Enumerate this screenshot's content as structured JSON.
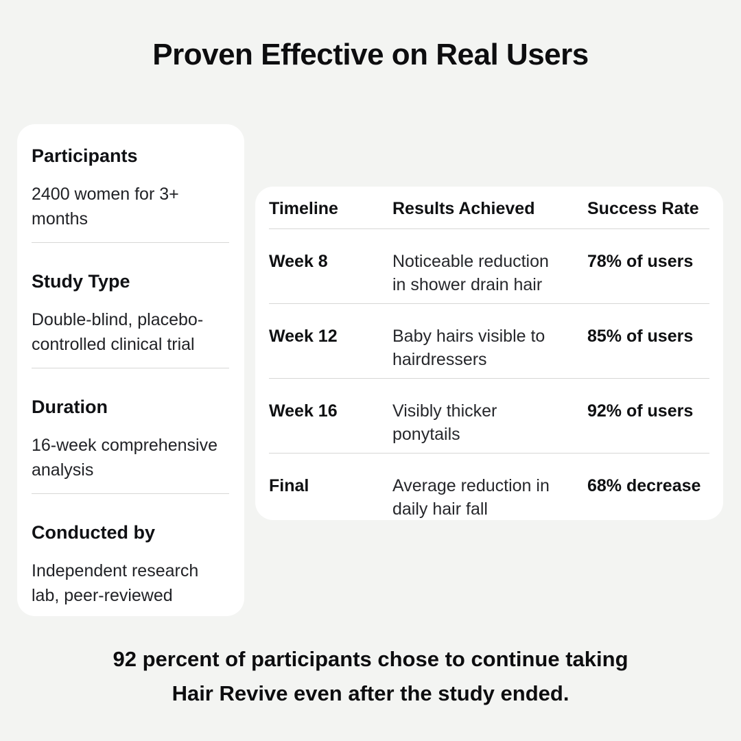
{
  "page": {
    "title": "Proven Effective on Real Users",
    "background_color": "#f3f4f2",
    "card_color": "#ffffff",
    "text_color": "#0d0d0f",
    "divider_color": "#d7d7d5"
  },
  "study_card": {
    "sections": [
      {
        "heading": "Participants",
        "body": "2400 women for 3+ months"
      },
      {
        "heading": "Study Type",
        "body": "Double-blind, placebo-controlled clinical trial"
      },
      {
        "heading": "Duration",
        "body": "16-week comprehensive analysis"
      },
      {
        "heading": "Conducted by",
        "body": "Independent research lab, peer-reviewed"
      }
    ]
  },
  "results_table": {
    "columns": [
      "Timeline",
      "Results Achieved",
      "Success Rate"
    ],
    "rows": [
      {
        "timeline": "Week 8",
        "result": "Noticeable reduction in shower drain hair",
        "success": "78% of users"
      },
      {
        "timeline": "Week 12",
        "result": "Baby hairs visible to hairdressers",
        "success": "85% of users"
      },
      {
        "timeline": "Week 16",
        "result": "Visibly thicker ponytails",
        "success": "92% of users"
      },
      {
        "timeline": "Final",
        "result": "Average reduction in daily hair fall",
        "success": "68% decrease"
      }
    ]
  },
  "footer": {
    "line1": "92 percent of participants chose to continue taking",
    "line2": "Hair Revive even after the study ended."
  }
}
